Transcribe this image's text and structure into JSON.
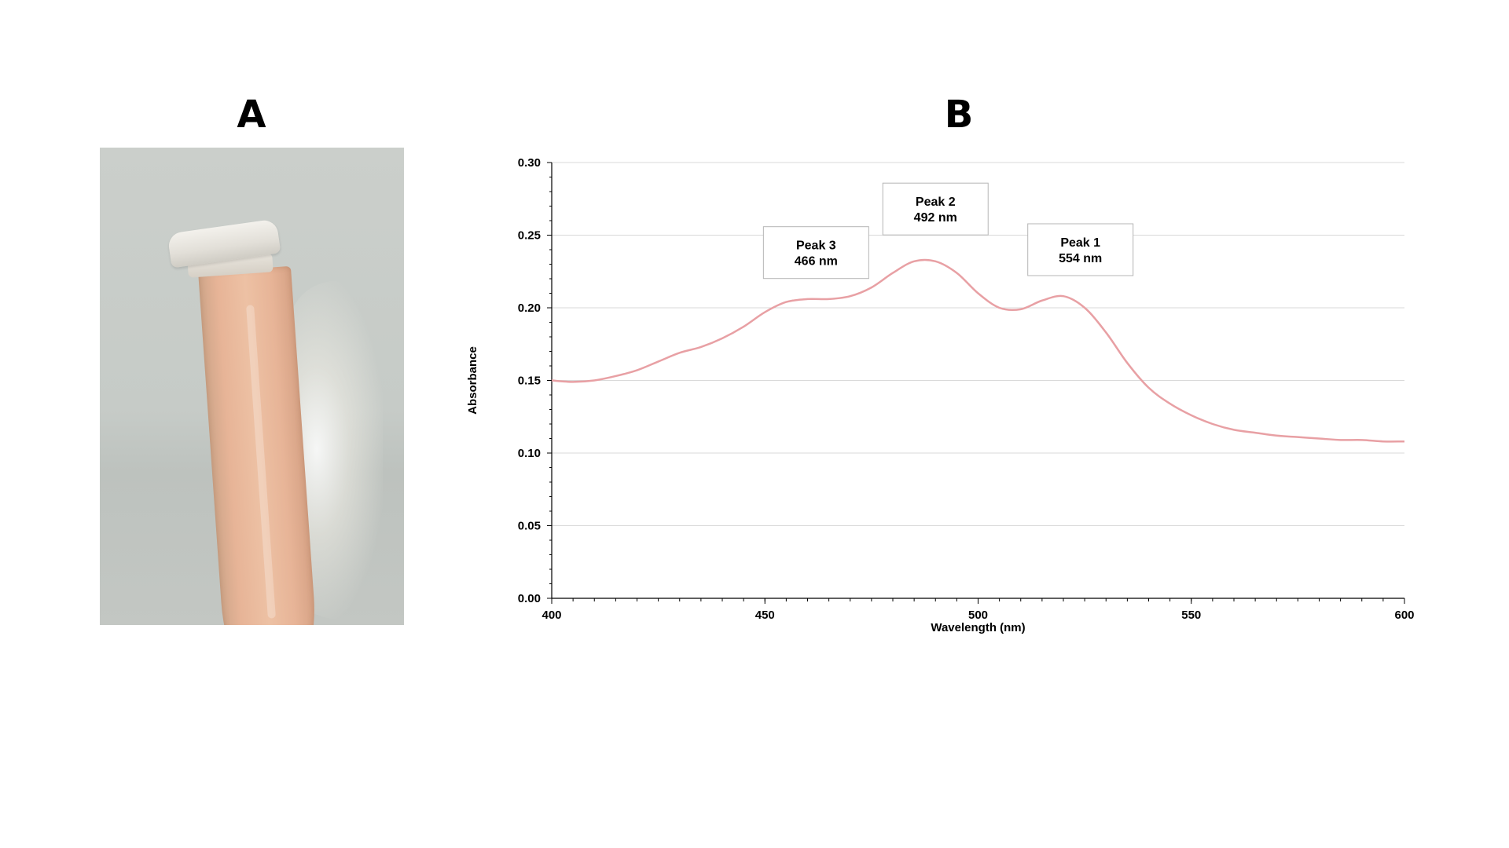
{
  "panels": {
    "a_label": "A",
    "b_label": "B"
  },
  "photo": {
    "description_icon": "microcentrifuge-tube-photo"
  },
  "chart_data": {
    "type": "line",
    "xlabel": "Wavelength (nm)",
    "ylabel": "Absorbance",
    "xlim": [
      400,
      600
    ],
    "ylim": [
      0,
      0.3
    ],
    "x_ticks": [
      "400",
      "450",
      "500",
      "550",
      "600"
    ],
    "y_ticks": [
      "0.00",
      "0.05",
      "0.10",
      "0.15",
      "0.20",
      "0.25",
      "0.30"
    ],
    "grid": "horizontal",
    "line_color": "#e8a0a4",
    "series": [
      {
        "x": [
          400,
          405,
          410,
          415,
          420,
          425,
          430,
          435,
          440,
          445,
          450,
          455,
          460,
          465,
          470,
          475,
          480,
          485,
          490,
          495,
          500,
          505,
          510,
          515,
          520,
          525,
          530,
          535,
          540,
          545,
          550,
          555,
          560,
          565,
          570,
          575,
          580,
          585,
          590,
          595,
          600
        ],
        "values": [
          0.15,
          0.149,
          0.15,
          0.153,
          0.157,
          0.163,
          0.169,
          0.173,
          0.179,
          0.187,
          0.197,
          0.204,
          0.206,
          0.206,
          0.208,
          0.214,
          0.224,
          0.232,
          0.232,
          0.224,
          0.21,
          0.2,
          0.199,
          0.205,
          0.208,
          0.2,
          0.183,
          0.162,
          0.145,
          0.134,
          0.126,
          0.12,
          0.116,
          0.114,
          0.112,
          0.111,
          0.11,
          0.109,
          0.109,
          0.108,
          0.108
        ]
      }
    ],
    "annotations": [
      {
        "line1": "Peak 3",
        "line2": "466 nm",
        "x": 462,
        "y": 0.238
      },
      {
        "line1": "Peak 2",
        "line2": "492 nm",
        "x": 490,
        "y": 0.268
      },
      {
        "line1": "Peak 1",
        "line2": "554 nm",
        "x": 524,
        "y": 0.24
      }
    ]
  }
}
